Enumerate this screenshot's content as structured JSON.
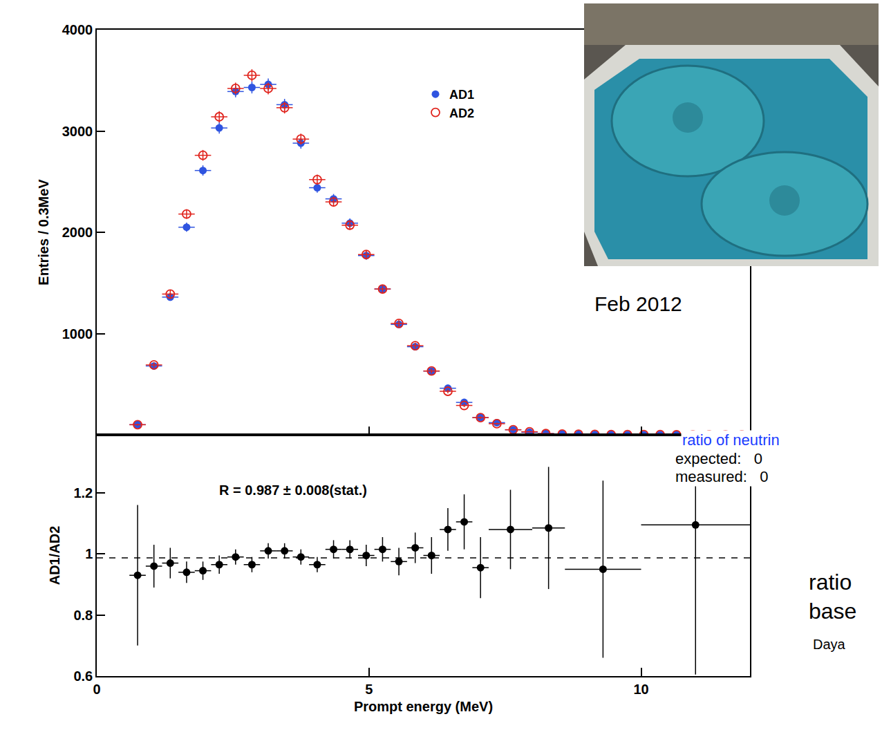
{
  "chart_data": [
    {
      "type": "scatter",
      "y_label": "Entries / 0.3MeV",
      "bins": [
        0.6,
        0.9,
        1.2,
        1.5,
        1.8,
        2.1,
        2.4,
        2.7,
        3.0,
        3.3,
        3.6,
        3.9,
        4.2,
        4.5,
        4.8,
        5.1,
        5.4,
        5.7,
        6.0,
        6.3,
        6.6,
        6.9,
        7.2,
        7.5,
        7.8,
        8.1,
        8.4,
        8.7,
        9.0,
        9.3,
        9.6,
        9.9,
        10.2,
        10.5,
        10.8,
        11.1,
        11.4,
        11.7,
        12.0
      ],
      "series": [
        {
          "name": "AD1",
          "color": "#2f54e0",
          "marker": "circle",
          "values": [
            100,
            680,
            1360,
            2050,
            2610,
            3030,
            3390,
            3430,
            3460,
            3260,
            2880,
            2440,
            2330,
            2090,
            1770,
            1440,
            1090,
            870,
            630,
            460,
            320,
            170,
            120,
            50,
            25,
            12,
            8,
            5,
            4,
            3,
            2,
            2,
            2,
            1,
            1,
            1,
            1,
            1
          ],
          "errors": [
            10,
            26,
            37,
            45,
            51,
            55,
            58,
            59,
            59,
            57,
            54,
            49,
            48,
            46,
            42,
            38,
            33,
            30,
            25,
            21,
            18,
            13,
            11,
            7,
            5,
            3,
            3,
            2,
            2,
            2,
            1,
            1,
            1,
            1,
            1,
            1,
            1,
            1
          ]
        },
        {
          "name": "AD2",
          "color": "#e0231c",
          "marker": "circle-open",
          "values": [
            100,
            690,
            1390,
            2180,
            2760,
            3140,
            3420,
            3550,
            3420,
            3230,
            2920,
            2520,
            2300,
            2070,
            1780,
            1440,
            1100,
            880,
            630,
            430,
            290,
            170,
            110,
            50,
            30,
            12,
            8,
            6,
            4,
            3,
            3,
            2,
            2,
            1,
            1,
            1,
            1,
            1
          ],
          "errors": [
            10,
            26,
            37,
            47,
            53,
            56,
            58,
            60,
            58,
            57,
            54,
            50,
            48,
            45,
            42,
            38,
            33,
            30,
            25,
            21,
            17,
            13,
            10,
            7,
            5,
            3,
            3,
            2,
            2,
            2,
            2,
            1,
            1,
            1,
            1,
            1,
            1,
            1
          ]
        }
      ],
      "xlim": [
        0,
        12
      ],
      "xticks": [
        0,
        5,
        10
      ],
      "ylim": [
        0,
        4000
      ],
      "yticks": [
        1000,
        2000,
        3000,
        4000
      ],
      "tick_labels": "y",
      "legend": "top"
    },
    {
      "type": "scatter",
      "x_label": "Prompt energy (MeV)",
      "y_label": "AD1/AD2",
      "bins": [
        0.6,
        0.9,
        1.2,
        1.5,
        1.8,
        2.1,
        2.4,
        2.7,
        3.0,
        3.3,
        3.6,
        3.9,
        4.2,
        4.5,
        4.8,
        5.1,
        5.4,
        5.7,
        6.0,
        6.3,
        6.6,
        6.9,
        7.2,
        8.0,
        8.6,
        10.0,
        12.0
      ],
      "values": [
        0.93,
        0.96,
        0.97,
        0.94,
        0.945,
        0.965,
        0.99,
        0.965,
        1.01,
        1.01,
        0.99,
        0.965,
        1.015,
        1.015,
        0.995,
        1.015,
        0.975,
        1.02,
        0.995,
        1.08,
        1.105,
        0.955,
        1.08,
        1.085,
        0.95,
        1.095
      ],
      "errors": [
        0.23,
        0.07,
        0.05,
        0.035,
        0.03,
        0.03,
        0.025,
        0.025,
        0.025,
        0.025,
        0.025,
        0.025,
        0.03,
        0.03,
        0.035,
        0.04,
        0.045,
        0.05,
        0.06,
        0.07,
        0.09,
        0.1,
        0.13,
        0.2,
        0.29,
        0.49
      ],
      "color": "#000000",
      "marker": "circle",
      "ratio": 0.987,
      "line_style": "dashed",
      "annotation": "R = 0.987 ± 0.008(stat.)",
      "xlim": [
        0,
        12
      ],
      "xticks": [
        0,
        5,
        10
      ],
      "ylim": [
        0.6,
        1.39
      ],
      "yticks": [
        0.6,
        0.8,
        1,
        1.2
      ]
    }
  ],
  "slide": {
    "photo_caption": "Feb 2012",
    "notes": [
      {
        "text": "ratio of neutrin",
        "color": "#1a3cff"
      },
      {
        "text": "expected:   0",
        "color": "#000000"
      },
      {
        "text": "measured:   0",
        "color": "#000000"
      },
      {
        "text": "ratio",
        "color": "#000000"
      },
      {
        "text": "base",
        "color": "#000000"
      },
      {
        "text": "Daya",
        "color": "#000000"
      }
    ]
  }
}
